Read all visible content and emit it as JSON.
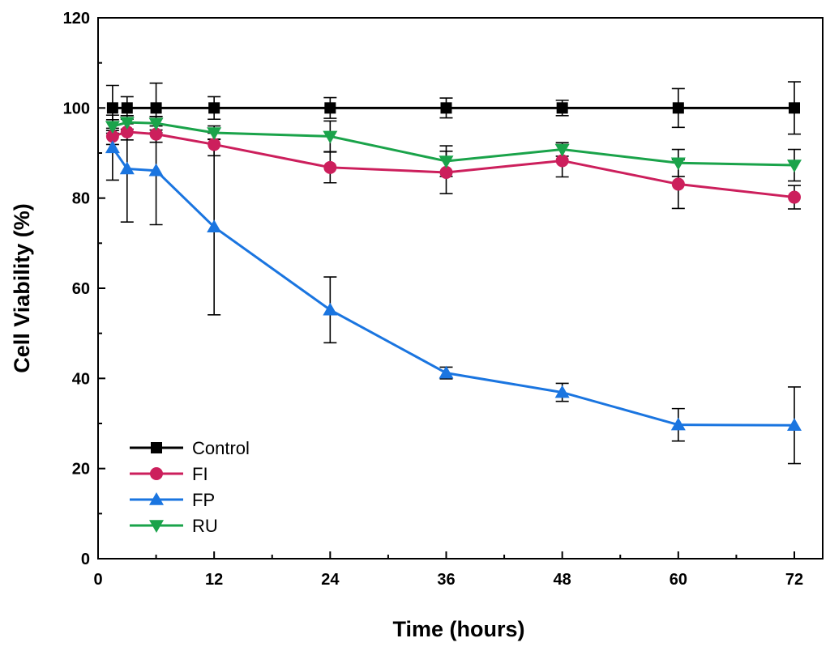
{
  "chart_data": {
    "type": "line",
    "title": "",
    "xlabel": "Time (hours)",
    "ylabel": "Cell Viability (%)",
    "xlim": [
      0,
      75
    ],
    "ylim": [
      0,
      120
    ],
    "xticks": [
      0,
      12,
      24,
      36,
      48,
      60,
      72
    ],
    "yticks": [
      0,
      20,
      40,
      60,
      80,
      100,
      120
    ],
    "legend_position": "bottom-left",
    "grid": false,
    "series": [
      {
        "name": "Control",
        "color": "#000000",
        "marker": "square",
        "x": [
          1.5,
          3,
          6,
          12,
          24,
          36,
          48,
          60,
          72
        ],
        "y": [
          100,
          100,
          100,
          100,
          100,
          100,
          100,
          100,
          100
        ],
        "err": [
          5,
          2.5,
          5.5,
          2.5,
          2.3,
          2.2,
          1.7,
          4.3,
          5.8
        ]
      },
      {
        "name": "FI",
        "color": "#cc1f5c",
        "marker": "circle",
        "x": [
          1.5,
          3,
          6,
          12,
          24,
          36,
          48,
          60,
          72
        ],
        "y": [
          93.7,
          94.7,
          94.2,
          91.9,
          86.8,
          85.7,
          88.3,
          83.1,
          80.2
        ],
        "err": [
          1.8,
          1.8,
          1.8,
          2.5,
          3.4,
          4.7,
          3.6,
          5.4,
          2.6
        ]
      },
      {
        "name": "FP",
        "color": "#1a75e0",
        "marker": "triangle-up",
        "x": [
          1.5,
          3,
          6,
          12,
          24,
          36,
          48,
          60,
          72
        ],
        "y": [
          91.2,
          86.5,
          86.1,
          73.6,
          55.2,
          41.2,
          36.9,
          29.7,
          29.6
        ],
        "err": [
          7.2,
          11.8,
          12.0,
          19.5,
          7.3,
          1.3,
          2.0,
          3.6,
          8.5
        ]
      },
      {
        "name": "RU",
        "color": "#1aa34a",
        "marker": "triangle-down",
        "x": [
          1.5,
          3,
          6,
          12,
          24,
          36,
          48,
          60,
          72
        ],
        "y": [
          95.9,
          96.8,
          96.6,
          94.5,
          93.7,
          88.2,
          90.8,
          87.8,
          87.3
        ],
        "err": [
          1.5,
          1.5,
          1.5,
          1.5,
          3.4,
          3.4,
          1.5,
          3.0,
          3.5
        ]
      }
    ]
  }
}
